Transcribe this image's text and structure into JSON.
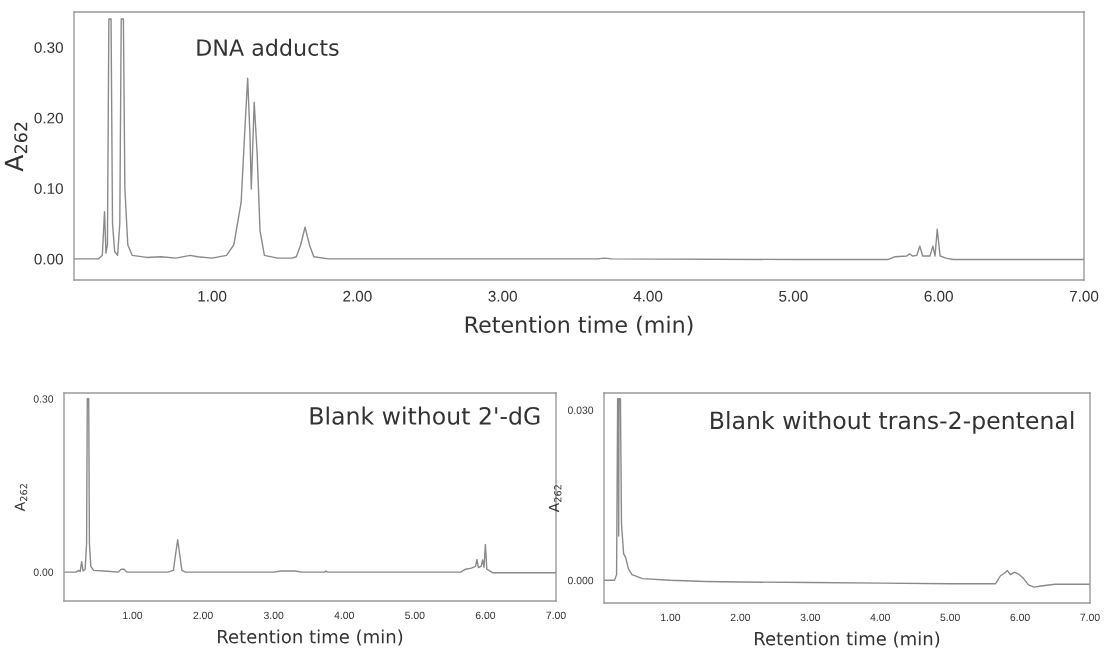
{
  "chart_data": [
    {
      "type": "line",
      "xlabel": "Retention time (min)",
      "ylabel": "A$_{262}$",
      "annotations": [
        "DNA adducts"
      ],
      "grid": false,
      "legend": false,
      "xlim": [
        0.05,
        7.0
      ],
      "ylim": [
        -0.03,
        0.35
      ],
      "xticks": [
        {
          "value": 1,
          "label": "1.00"
        },
        {
          "value": 2,
          "label": "2.00"
        },
        {
          "value": 3,
          "label": "3.00"
        },
        {
          "value": 4,
          "label": "4.00"
        },
        {
          "value": 5,
          "label": "5.00"
        },
        {
          "value": 6,
          "label": "6.00"
        },
        {
          "value": 7,
          "label": "7.00"
        }
      ],
      "yticks": [
        {
          "value": 0,
          "label": "0.00"
        },
        {
          "value": 0.1,
          "label": "0.10"
        },
        {
          "value": 0.2,
          "label": "0.20"
        },
        {
          "value": 0.3,
          "label": "0.30"
        }
      ],
      "x": [
        0.05,
        0.22,
        0.245,
        0.26,
        0.27,
        0.28,
        0.29,
        0.2975,
        0.305,
        0.315,
        0.33,
        0.35,
        0.365,
        0.375,
        0.3825,
        0.39,
        0.4,
        0.42,
        0.45,
        0.55,
        0.65,
        0.75,
        0.85,
        0.9,
        1.0,
        1.1,
        1.15,
        1.2,
        1.23,
        1.245,
        1.26,
        1.27,
        1.29,
        1.31,
        1.33,
        1.36,
        1.45,
        1.55,
        1.58,
        1.61,
        1.64,
        1.67,
        1.7,
        1.8,
        2.5,
        3.0,
        3.65,
        3.7,
        3.75,
        5.0,
        5.65,
        5.7,
        5.78,
        5.8,
        5.82,
        5.85,
        5.87,
        5.89,
        5.94,
        5.96,
        5.975,
        5.99,
        6.01,
        6.05,
        6.1,
        7.0
      ],
      "series": [
        {
          "color": "#8a8a8a",
          "values": [
            0.0,
            0.0,
            0.005,
            0.067,
            0.008,
            0.02,
            0.34,
            null,
            0.34,
            0.05,
            0.01,
            0.005,
            0.05,
            0.34,
            null,
            0.34,
            0.1,
            0.02,
            0.005,
            0.002,
            0.003,
            0.001,
            0.005,
            0.003,
            0.001,
            0.005,
            0.02,
            0.08,
            0.2,
            0.256,
            0.18,
            0.099,
            0.222,
            0.15,
            0.04,
            0.005,
            0.001,
            0.001,
            0.003,
            0.02,
            0.045,
            0.02,
            0.003,
            0.0,
            0.0,
            0.0,
            0.0,
            0.001,
            0.0,
            -0.001,
            -0.001,
            0.003,
            0.004,
            0.007,
            0.004,
            0.005,
            0.018,
            0.004,
            0.004,
            0.018,
            0.004,
            0.042,
            0.004,
            0.001,
            -0.001,
            -0.001
          ]
        }
      ]
    },
    {
      "type": "line",
      "xlabel": "Retention time (min)",
      "ylabel": "A$_{262}$",
      "annotations": [
        "Blank without 2'-dG"
      ],
      "grid": false,
      "legend": false,
      "xlim": [
        0.03,
        7.0
      ],
      "ylim": [
        -0.05,
        0.31
      ],
      "xticks": [
        {
          "value": 1,
          "label": "1.00"
        },
        {
          "value": 2,
          "label": "2.00"
        },
        {
          "value": 3,
          "label": "3.00"
        },
        {
          "value": 4,
          "label": "4.00"
        },
        {
          "value": 5,
          "label": "5.00"
        },
        {
          "value": 6,
          "label": "6.00"
        },
        {
          "value": 7,
          "label": "7.00"
        }
      ],
      "yticks": [
        {
          "value": 0,
          "label": "0.00"
        },
        {
          "value": 0.3,
          "label": "0.30"
        }
      ],
      "x": [
        0.03,
        0.2,
        0.24,
        0.26,
        0.28,
        0.3,
        0.33,
        0.35,
        0.36,
        0.37,
        0.38,
        0.39,
        0.41,
        0.45,
        0.6,
        0.8,
        0.84,
        0.88,
        0.92,
        1.5,
        1.58,
        1.61,
        1.64,
        1.67,
        1.7,
        1.75,
        3.0,
        3.1,
        3.3,
        3.4,
        3.72,
        3.74,
        3.76,
        5.65,
        5.72,
        5.8,
        5.86,
        5.88,
        5.9,
        5.94,
        5.96,
        5.98,
        6.0,
        6.02,
        6.06,
        6.1,
        7.0
      ],
      "series": [
        {
          "color": "#8a8a8a",
          "values": [
            0.0,
            0.0,
            0.003,
            0.001,
            0.018,
            0.002,
            0.005,
            0.05,
            0.3,
            null,
            0.3,
            0.05,
            0.01,
            0.003,
            0.002,
            0.0,
            0.005,
            0.005,
            0.0,
            0.0,
            0.003,
            0.03,
            0.056,
            0.03,
            0.003,
            0.0,
            0.0,
            0.002,
            0.002,
            0.0,
            0.0,
            0.002,
            0.0,
            0.0,
            0.005,
            0.007,
            0.01,
            0.022,
            0.008,
            0.01,
            0.021,
            0.008,
            0.048,
            0.005,
            0.002,
            -0.001,
            -0.001
          ]
        }
      ]
    },
    {
      "type": "line",
      "xlabel": "Retention time (min)",
      "ylabel": "A$_{262}$",
      "annotations": [
        "Blank without trans-2-pentenal"
      ],
      "grid": false,
      "legend": false,
      "xlim": [
        0.05,
        7.0
      ],
      "ylim": [
        -0.004,
        0.033
      ],
      "xticks": [
        {
          "value": 1,
          "label": "1.00"
        },
        {
          "value": 2,
          "label": "2.00"
        },
        {
          "value": 3,
          "label": "3.00"
        },
        {
          "value": 4,
          "label": "4.00"
        },
        {
          "value": 5,
          "label": "5.00"
        },
        {
          "value": 6,
          "label": "6.00"
        },
        {
          "value": 7,
          "label": "7.00"
        }
      ],
      "yticks": [
        {
          "value": 0,
          "label": "0.000"
        },
        {
          "value": 0.03,
          "label": "0.030"
        }
      ],
      "x": [
        0.05,
        0.2,
        0.23,
        0.245,
        0.25,
        0.255,
        0.26,
        0.265,
        0.275,
        0.285,
        0.3,
        0.33,
        0.36,
        0.4,
        0.45,
        0.6,
        1.0,
        1.5,
        2.0,
        3.0,
        4.0,
        5.0,
        5.65,
        5.72,
        5.77,
        5.82,
        5.86,
        5.92,
        5.98,
        6.05,
        6.12,
        6.2,
        6.3,
        6.5,
        7.0
      ],
      "series": [
        {
          "color": "#8a8a8a",
          "values": [
            0.0,
            0.0,
            0.001,
            0.032,
            null,
            0.032,
            0.0078,
            0.032,
            null,
            0.032,
            0.01,
            0.0047,
            0.004,
            0.002,
            0.001,
            0.0003,
            0.0,
            -0.0002,
            -0.0003,
            -0.0004,
            -0.0005,
            -0.0006,
            -0.0006,
            0.0008,
            0.0012,
            0.0017,
            0.001,
            0.0014,
            0.0011,
            0.0003,
            -0.0008,
            -0.0012,
            -0.001,
            -0.0007,
            -0.0007
          ]
        }
      ]
    }
  ]
}
